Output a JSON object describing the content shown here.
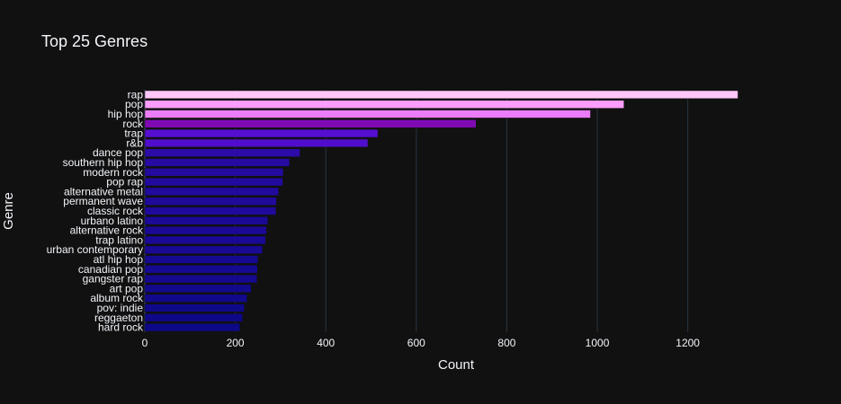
{
  "chart_data": {
    "type": "bar",
    "orientation": "horizontal",
    "title": "Top 25 Genres",
    "xlabel": "Count",
    "ylabel": "Genre",
    "xlim": [
      0,
      1320
    ],
    "xticks": [
      "0",
      "200",
      "400",
      "600",
      "800",
      "1000",
      "1200"
    ],
    "grid": true,
    "legend": "none",
    "categories": [
      "rap",
      "pop",
      "hip hop",
      "rock",
      "trap",
      "r&b",
      "dance pop",
      "southern hip hop",
      "modern rock",
      "pop rap",
      "alternative metal",
      "permanent wave",
      "classic rock",
      "urbano latino",
      "alternative rock",
      "trap latino",
      "urban contemporary",
      "atl hip hop",
      "canadian pop",
      "gangster rap",
      "art pop",
      "album rock",
      "pov: indie",
      "reggaeton",
      "hard rock"
    ],
    "values": [
      1311,
      1059,
      985,
      732,
      515,
      493,
      343,
      320,
      306,
      305,
      296,
      291,
      290,
      272,
      269,
      267,
      260,
      250,
      249,
      248,
      235,
      226,
      220,
      216,
      210
    ],
    "colorscale": [
      "#0d0887",
      "#46039f",
      "#7201a8",
      "#9c179e",
      "#bd3786",
      "#d8576b",
      "#ed7953",
      "#fb9f3a",
      "#fdca26",
      "#f0f921"
    ],
    "colors": {
      "background": "#111111",
      "text": "#f2f5fa",
      "grid": "#283442",
      "bar_low": "#0d0887",
      "bar_mid": "#7201a8",
      "bar_high": "#ff99ff",
      "bar_top": "#ffc6f9"
    }
  }
}
